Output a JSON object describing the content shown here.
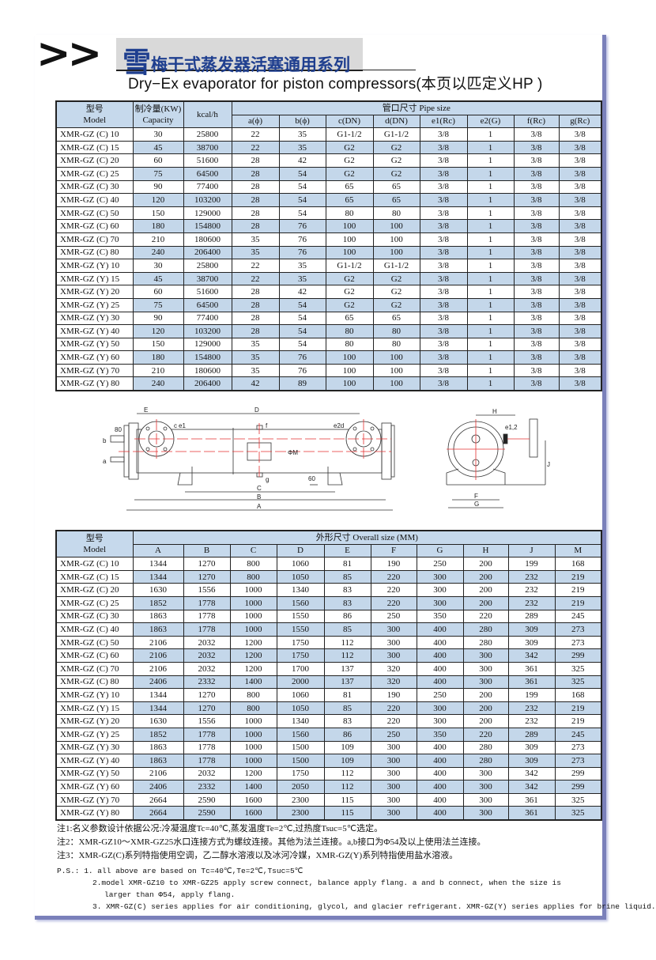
{
  "header": {
    "arrows": ">>",
    "title_big_char": "雪",
    "title_rest": "梅干式蒸发器活塞通用系列",
    "subtitle": "Dry−Ex evaporator for piston compressors(本页以匹定义HP )"
  },
  "pipe_table": {
    "model_header": [
      "型号",
      "Model"
    ],
    "capacity_header": [
      "制冷量(KW)",
      "Capacity"
    ],
    "kcal_header": "kcal/h",
    "pipe_size_header": "管口尺寸 Pipe size",
    "columns": [
      "a(ϕ)",
      "b(ϕ)",
      "c(DN)",
      "d(DN)",
      "e1(Rc)",
      "e2(G)",
      "f(Rc)",
      "g(Rc)"
    ],
    "rows": [
      [
        "XMR-GZ (C) 10",
        "30",
        "25800",
        "22",
        "35",
        "G1-1/2",
        "G1-1/2",
        "3/8",
        "1",
        "3/8",
        "3/8"
      ],
      [
        "XMR-GZ (C) 15",
        "45",
        "38700",
        "22",
        "35",
        "G2",
        "G2",
        "3/8",
        "1",
        "3/8",
        "3/8"
      ],
      [
        "XMR-GZ (C) 20",
        "60",
        "51600",
        "28",
        "42",
        "G2",
        "G2",
        "3/8",
        "1",
        "3/8",
        "3/8"
      ],
      [
        "XMR-GZ (C) 25",
        "75",
        "64500",
        "28",
        "54",
        "G2",
        "G2",
        "3/8",
        "1",
        "3/8",
        "3/8"
      ],
      [
        "XMR-GZ (C) 30",
        "90",
        "77400",
        "28",
        "54",
        "65",
        "65",
        "3/8",
        "1",
        "3/8",
        "3/8"
      ],
      [
        "XMR-GZ (C) 40",
        "120",
        "103200",
        "28",
        "54",
        "65",
        "65",
        "3/8",
        "1",
        "3/8",
        "3/8"
      ],
      [
        "XMR-GZ (C) 50",
        "150",
        "129000",
        "28",
        "54",
        "80",
        "80",
        "3/8",
        "1",
        "3/8",
        "3/8"
      ],
      [
        "XMR-GZ (C) 60",
        "180",
        "154800",
        "28",
        "76",
        "100",
        "100",
        "3/8",
        "1",
        "3/8",
        "3/8"
      ],
      [
        "XMR-GZ (C) 70",
        "210",
        "180600",
        "35",
        "76",
        "100",
        "100",
        "3/8",
        "1",
        "3/8",
        "3/8"
      ],
      [
        "XMR-GZ (C) 80",
        "240",
        "206400",
        "35",
        "76",
        "100",
        "100",
        "3/8",
        "1",
        "3/8",
        "3/8"
      ],
      [
        "XMR-GZ (Y) 10",
        "30",
        "25800",
        "22",
        "35",
        "G1-1/2",
        "G1-1/2",
        "3/8",
        "1",
        "3/8",
        "3/8"
      ],
      [
        "XMR-GZ (Y) 15",
        "45",
        "38700",
        "22",
        "35",
        "G2",
        "G2",
        "3/8",
        "1",
        "3/8",
        "3/8"
      ],
      [
        "XMR-GZ (Y) 20",
        "60",
        "51600",
        "28",
        "42",
        "G2",
        "G2",
        "3/8",
        "1",
        "3/8",
        "3/8"
      ],
      [
        "XMR-GZ (Y) 25",
        "75",
        "64500",
        "28",
        "54",
        "G2",
        "G2",
        "3/8",
        "1",
        "3/8",
        "3/8"
      ],
      [
        "XMR-GZ (Y) 30",
        "90",
        "77400",
        "28",
        "54",
        "65",
        "65",
        "3/8",
        "1",
        "3/8",
        "3/8"
      ],
      [
        "XMR-GZ (Y) 40",
        "120",
        "103200",
        "28",
        "54",
        "80",
        "80",
        "3/8",
        "1",
        "3/8",
        "3/8"
      ],
      [
        "XMR-GZ (Y) 50",
        "150",
        "129000",
        "35",
        "54",
        "80",
        "80",
        "3/8",
        "1",
        "3/8",
        "3/8"
      ],
      [
        "XMR-GZ (Y) 60",
        "180",
        "154800",
        "35",
        "76",
        "100",
        "100",
        "3/8",
        "1",
        "3/8",
        "3/8"
      ],
      [
        "XMR-GZ (Y) 70",
        "210",
        "180600",
        "35",
        "76",
        "100",
        "100",
        "3/8",
        "1",
        "3/8",
        "3/8"
      ],
      [
        "XMR-GZ (Y) 80",
        "240",
        "206400",
        "42",
        "89",
        "100",
        "100",
        "3/8",
        "1",
        "3/8",
        "3/8"
      ]
    ]
  },
  "diagram": {
    "side_labels": [
      "E",
      "D",
      "c",
      "e1",
      "e2d",
      "f",
      "g",
      "b",
      "a",
      "80",
      "ΦM",
      "60",
      "C",
      "B",
      "A"
    ],
    "end_labels": [
      "H",
      "e1,2",
      "J",
      "F",
      "G"
    ]
  },
  "size_table": {
    "model_header": [
      "型号",
      "Model"
    ],
    "overall_header": "外形尺寸 Overall size (MM)",
    "columns": [
      "A",
      "B",
      "C",
      "D",
      "E",
      "F",
      "G",
      "H",
      "J",
      "M"
    ],
    "rows": [
      [
        "XMR-GZ (C) 10",
        "1344",
        "1270",
        "800",
        "1060",
        "81",
        "190",
        "250",
        "200",
        "199",
        "168"
      ],
      [
        "XMR-GZ (C) 15",
        "1344",
        "1270",
        "800",
        "1050",
        "85",
        "220",
        "300",
        "200",
        "232",
        "219"
      ],
      [
        "XMR-GZ (C) 20",
        "1630",
        "1556",
        "1000",
        "1340",
        "83",
        "220",
        "300",
        "200",
        "232",
        "219"
      ],
      [
        "XMR-GZ (C) 25",
        "1852",
        "1778",
        "1000",
        "1560",
        "83",
        "220",
        "300",
        "200",
        "232",
        "219"
      ],
      [
        "XMR-GZ (C) 30",
        "1863",
        "1778",
        "1000",
        "1550",
        "86",
        "250",
        "350",
        "220",
        "289",
        "245"
      ],
      [
        "XMR-GZ (C) 40",
        "1863",
        "1778",
        "1000",
        "1550",
        "85",
        "300",
        "400",
        "280",
        "309",
        "273"
      ],
      [
        "XMR-GZ (C) 50",
        "2106",
        "2032",
        "1200",
        "1750",
        "112",
        "300",
        "400",
        "280",
        "309",
        "273"
      ],
      [
        "XMR-GZ (C) 60",
        "2106",
        "2032",
        "1200",
        "1750",
        "112",
        "300",
        "400",
        "300",
        "342",
        "299"
      ],
      [
        "XMR-GZ (C) 70",
        "2106",
        "2032",
        "1200",
        "1700",
        "137",
        "320",
        "400",
        "300",
        "361",
        "325"
      ],
      [
        "XMR-GZ (C) 80",
        "2406",
        "2332",
        "1400",
        "2000",
        "137",
        "320",
        "400",
        "300",
        "361",
        "325"
      ],
      [
        "XMR-GZ (Y) 10",
        "1344",
        "1270",
        "800",
        "1060",
        "81",
        "190",
        "250",
        "200",
        "199",
        "168"
      ],
      [
        "XMR-GZ (Y) 15",
        "1344",
        "1270",
        "800",
        "1050",
        "85",
        "220",
        "300",
        "200",
        "232",
        "219"
      ],
      [
        "XMR-GZ (Y) 20",
        "1630",
        "1556",
        "1000",
        "1340",
        "83",
        "220",
        "300",
        "200",
        "232",
        "219"
      ],
      [
        "XMR-GZ (Y) 25",
        "1852",
        "1778",
        "1000",
        "1560",
        "86",
        "250",
        "350",
        "220",
        "289",
        "245"
      ],
      [
        "XMR-GZ (Y) 30",
        "1863",
        "1778",
        "1000",
        "1500",
        "109",
        "300",
        "400",
        "280",
        "309",
        "273"
      ],
      [
        "XMR-GZ (Y) 40",
        "1863",
        "1778",
        "1000",
        "1500",
        "109",
        "300",
        "400",
        "280",
        "309",
        "273"
      ],
      [
        "XMR-GZ (Y) 50",
        "2106",
        "2032",
        "1200",
        "1750",
        "112",
        "300",
        "400",
        "300",
        "342",
        "299"
      ],
      [
        "XMR-GZ (Y) 60",
        "2406",
        "2332",
        "1400",
        "2050",
        "112",
        "300",
        "400",
        "300",
        "342",
        "299"
      ],
      [
        "XMR-GZ (Y) 70",
        "2664",
        "2590",
        "1600",
        "2300",
        "115",
        "300",
        "400",
        "300",
        "361",
        "325"
      ],
      [
        "XMR-GZ (Y) 80",
        "2664",
        "2590",
        "1600",
        "2300",
        "115",
        "300",
        "400",
        "300",
        "361",
        "325"
      ]
    ]
  },
  "notes": {
    "cn": [
      "注1:名义参数设计依据公况:冷凝温度Tc=40℃,蒸发温度Te=2℃,过热度Tsuc=5℃选定。",
      "注2：XMR-GZ10～XMR-GZ25水口连接方式为螺纹连接。其他为法兰连接。a,b接口为Φ54及以上使用法兰连接。",
      "注3：XMR-GZ(C)系列特指使用空调，乙二醇水溶液以及冰河冷媒，XMR-GZ(Y)系列特指使用盐水溶液。"
    ],
    "ps_1": "P.S.: 1. all above are based on Tc=40℃,Te=2℃,Tsuc=5℃",
    "ps_2a": "2.model XMR-GZ10 to XMR-GZ25 apply screw connect, balance apply flang. a and b connect, when the size is",
    "ps_2b": "larger than Φ54, apply flang.",
    "ps_3": "3. XMR-GZ(C) series applies for air conditioning, glycol, and glacier refrigerant. XMR-GZ(Y) series applies for brine liquid."
  },
  "colors": {
    "header_fill": "#c6d9ec",
    "row_shade": "#c4d7ea",
    "title_blue": "#1f3f8f",
    "frame": "#7a80ba",
    "center_line": "#e53030"
  }
}
